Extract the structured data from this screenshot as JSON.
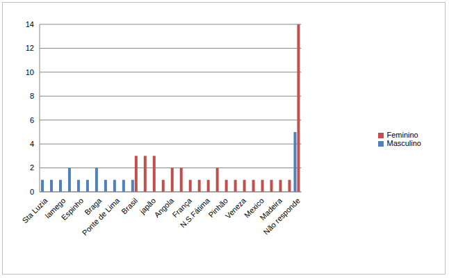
{
  "chart_data": {
    "type": "bar",
    "categories": [
      "Sta Luzia",
      null,
      "lamego",
      null,
      "Espinho",
      null,
      "Braga",
      null,
      "Ponte de Lima",
      null,
      "Brasil",
      null,
      "japão",
      null,
      "Angola",
      null,
      "França",
      null,
      "N.S.Fátima",
      null,
      "Pinhão",
      null,
      "Veneza",
      null,
      "Mexico",
      null,
      "Madeira",
      null,
      "Não responde"
    ],
    "series": [
      {
        "name": "Masculino",
        "color": "#4f81bd",
        "values": [
          1,
          1,
          1,
          2,
          1,
          1,
          2,
          1,
          1,
          1,
          1,
          null,
          null,
          null,
          null,
          null,
          null,
          null,
          null,
          null,
          null,
          null,
          null,
          null,
          null,
          null,
          null,
          null,
          5
        ]
      },
      {
        "name": "Feminino",
        "color": "#c0504d",
        "values": [
          null,
          null,
          null,
          null,
          null,
          null,
          null,
          null,
          null,
          null,
          3,
          3,
          3,
          1,
          2,
          2,
          1,
          1,
          1,
          2,
          1,
          1,
          1,
          1,
          1,
          1,
          1,
          1,
          14
        ]
      }
    ],
    "ylim": [
      0,
      14
    ],
    "yticks": [
      0,
      2,
      4,
      6,
      8,
      10,
      12,
      14
    ],
    "grid": true,
    "legend": "right"
  }
}
